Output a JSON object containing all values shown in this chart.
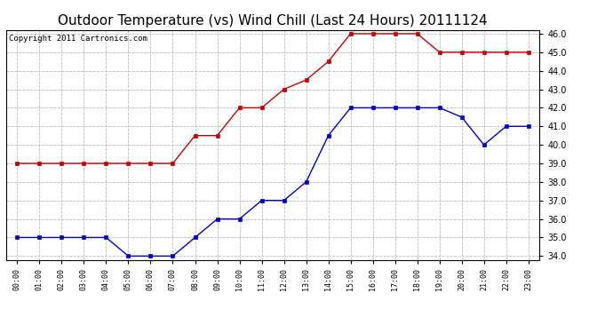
{
  "title": "Outdoor Temperature (vs) Wind Chill (Last 24 Hours) 20111124",
  "copyright": "Copyright 2011 Cartronics.com",
  "x_labels": [
    "00:00",
    "01:00",
    "02:00",
    "03:00",
    "04:00",
    "05:00",
    "06:00",
    "07:00",
    "08:00",
    "09:00",
    "10:00",
    "11:00",
    "12:00",
    "13:00",
    "14:00",
    "15:00",
    "16:00",
    "17:00",
    "18:00",
    "19:00",
    "20:00",
    "21:00",
    "22:00",
    "23:00"
  ],
  "temp_data": [
    35.0,
    35.0,
    35.0,
    35.0,
    35.0,
    34.0,
    34.0,
    34.0,
    35.0,
    36.0,
    36.0,
    37.0,
    37.0,
    38.0,
    40.5,
    42.0,
    42.0,
    42.0,
    42.0,
    42.0,
    41.5,
    40.0,
    41.0,
    41.0
  ],
  "windchill_data": [
    39.0,
    39.0,
    39.0,
    39.0,
    39.0,
    39.0,
    39.0,
    39.0,
    40.5,
    40.5,
    42.0,
    42.0,
    43.0,
    43.5,
    44.5,
    46.0,
    46.0,
    46.0,
    46.0,
    45.0,
    45.0,
    45.0,
    45.0,
    45.0
  ],
  "temp_color": "#0000cc",
  "windchill_color": "#cc0000",
  "ylim_min": 34.0,
  "ylim_max": 46.0,
  "ytick_step": 1.0,
  "background_color": "#ffffff",
  "plot_bg_color": "#ffffff",
  "grid_color": "#bbbbbb",
  "title_fontsize": 11,
  "copyright_fontsize": 6.5,
  "marker_size": 3,
  "line_width": 1.0
}
